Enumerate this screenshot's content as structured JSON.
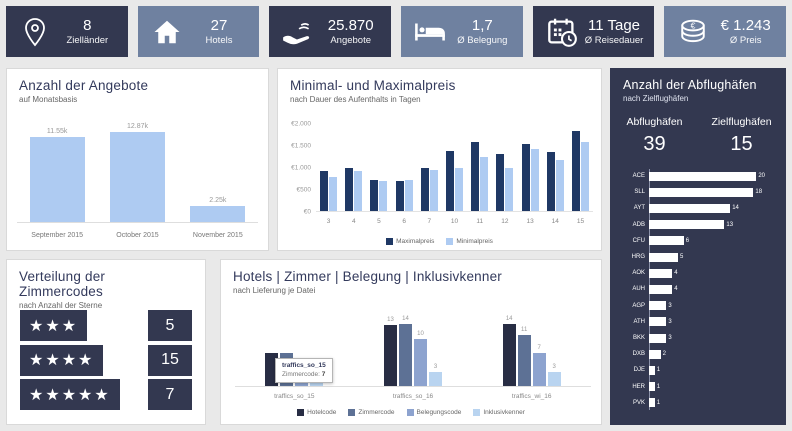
{
  "colors": {
    "background": "#e9e9e9",
    "tile_dark": "#333850",
    "tile_light": "#6f81a0",
    "panel_dark": "#333850",
    "title_navy": "#333a5c",
    "bar_light_blue": "#aecbf2",
    "bar_dark_navy": "#1f3864",
    "bar_hotelcode": "#282d44",
    "bar_zimmercode": "#5d7195",
    "bar_belegungscode": "#8da3cf",
    "bar_inklusivkenner": "#b9d4f0",
    "bar_white": "#ffffff"
  },
  "kpi": [
    {
      "icon": "location-pin-icon",
      "value": "8",
      "label": "Zielländer",
      "variant": "dark"
    },
    {
      "icon": "house-icon",
      "value": "27",
      "label": "Hotels",
      "variant": "light"
    },
    {
      "icon": "giving-hand-icon",
      "value": "25.870",
      "label": "Angebote",
      "variant": "dark"
    },
    {
      "icon": "bed-icon",
      "value": "1,7",
      "label": "Ø Belegung",
      "variant": "light"
    },
    {
      "icon": "calendar-clock-icon",
      "value": "11 Tage",
      "label": "Ø Reisedauer",
      "variant": "dark"
    },
    {
      "icon": "euro-coins-icon",
      "value": "€ 1.243",
      "label": "Ø Preis",
      "variant": "light"
    }
  ],
  "chart_data": [
    {
      "id": "angebote",
      "type": "bar",
      "title": "Anzahl der Angebote",
      "subtitle": "auf Monatsbasis",
      "categories": [
        "September 2015",
        "October 2015",
        "November 2015"
      ],
      "values": [
        11.55,
        12.87,
        2.25
      ],
      "value_labels": [
        "11.55k",
        "12.87k",
        "2.25k"
      ],
      "unit": "k Angebote",
      "ymax": 13.5,
      "bar_color": "#aecbf2"
    },
    {
      "id": "preis",
      "type": "bar",
      "title": "Minimal- und Maximalpreis",
      "subtitle": "nach Dauer des Aufenthalts in Tagen",
      "categories": [
        "3",
        "4",
        "5",
        "6",
        "7",
        "10",
        "11",
        "12",
        "13",
        "14",
        "15"
      ],
      "series": [
        {
          "name": "Maximalpreis",
          "color": "#1f3864",
          "values": [
            920,
            1000,
            720,
            700,
            990,
            1390,
            1580,
            1300,
            1550,
            1350,
            1830
          ]
        },
        {
          "name": "Minimalpreis",
          "color": "#aecbf2",
          "values": [
            790,
            920,
            680,
            705,
            950,
            1000,
            1245,
            990,
            1430,
            1180,
            1590
          ]
        }
      ],
      "yticks": [
        {
          "label": "€2.000",
          "v": 2000
        },
        {
          "label": "€1.500",
          "v": 1500
        },
        {
          "label": "€1.000",
          "v": 1000
        },
        {
          "label": "€500",
          "v": 500
        },
        {
          "label": "€0",
          "v": 0
        }
      ],
      "ymax": 2000,
      "legend_position": "bottom"
    },
    {
      "id": "abflughaefen",
      "type": "bar",
      "orientation": "horizontal",
      "title": "Anzahl der Abflughäfen",
      "subtitle": "nach Zielflughäfen",
      "stats": [
        {
          "label": "Abflughäfen",
          "value": "39"
        },
        {
          "label": "Zielflughäfen",
          "value": "15"
        }
      ],
      "categories": [
        "ACE",
        "SLL",
        "AYT",
        "ADB",
        "CFU",
        "HRG",
        "AOK",
        "AUH",
        "AGP",
        "ATH",
        "BKK",
        "DXB",
        "DJE",
        "HER",
        "PVK"
      ],
      "values": [
        20,
        18,
        14,
        13,
        6,
        5,
        4,
        4,
        3,
        3,
        3,
        2,
        1,
        1,
        1
      ],
      "xmax": 20,
      "bar_color": "#ffffff"
    },
    {
      "id": "zimmercodes",
      "type": "table",
      "title": "Verteilung der Zimmercodes",
      "subtitle": "nach Anzahl der Sterne",
      "rows": [
        {
          "stars": 3,
          "value": "5"
        },
        {
          "stars": 4,
          "value": "15"
        },
        {
          "stars": 5,
          "value": "7"
        }
      ]
    },
    {
      "id": "hotels",
      "type": "bar",
      "title": "Hotels | Zimmer | Belegung | Inklusivkenner",
      "subtitle": "nach Lieferung je Datei",
      "categories": [
        "traffics_so_15",
        "traffics_so_16",
        "traffics_wi_16"
      ],
      "series": [
        {
          "name": "Hotelcode",
          "color": "#282d44",
          "values": [
            7,
            13,
            14
          ]
        },
        {
          "name": "Zimmercode",
          "color": "#5d7195",
          "values": [
            7,
            14,
            11
          ]
        },
        {
          "name": "Belegungscode",
          "color": "#8da3cf",
          "values": [
            4,
            10,
            7
          ]
        },
        {
          "name": "Inklusivkenner",
          "color": "#b9d4f0",
          "values": [
            3,
            3,
            3
          ]
        }
      ],
      "ymax": 15,
      "hidden_value_labels": [
        "0-0",
        "0-1"
      ],
      "tooltip": {
        "title": "traffics_so_15",
        "label": "Zimmercode:",
        "value": "7"
      },
      "legend_position": "bottom"
    }
  ]
}
